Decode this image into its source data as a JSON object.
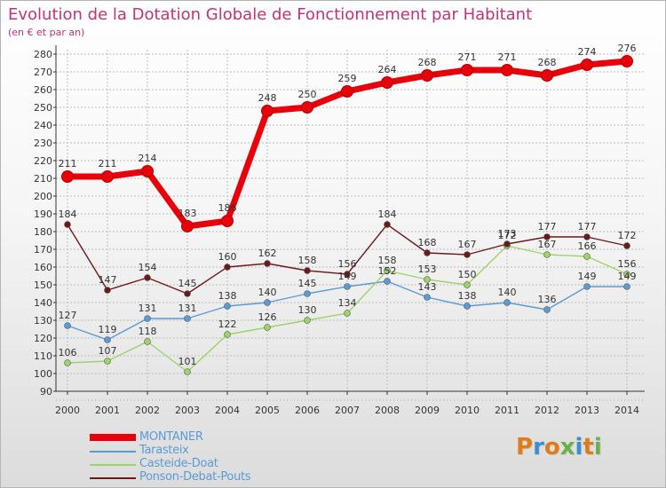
{
  "title": "Evolution de la Dotation Globale de Fonctionnement par Habitant",
  "subtitle": "(en € et par an)",
  "logo_text": "Proxiti",
  "chart_data": {
    "type": "line",
    "title": "Evolution de la Dotation Globale de Fonctionnement par Habitant",
    "ylabel": "(en € et par an)",
    "xlabel": "",
    "x": [
      "2000",
      "2001",
      "2002",
      "2003",
      "2004",
      "2005",
      "2006",
      "2007",
      "2008",
      "2009",
      "2010",
      "2011",
      "2012",
      "2013",
      "2014"
    ],
    "ylim": [
      90,
      280
    ],
    "yticks": [
      90,
      100,
      110,
      120,
      130,
      140,
      150,
      160,
      170,
      180,
      190,
      200,
      210,
      220,
      230,
      240,
      250,
      260,
      270,
      280
    ],
    "grid": true,
    "legend_position": "bottom-left",
    "series": [
      {
        "name": "MONTANER",
        "color": "#e8000b",
        "values": [
          211,
          211,
          214,
          183,
          186,
          248,
          250,
          259,
          264,
          268,
          271,
          271,
          268,
          274,
          276
        ]
      },
      {
        "name": "Tarasteix",
        "color": "#5b9bd5",
        "values": [
          127,
          119,
          131,
          131,
          138,
          140,
          145,
          149,
          152,
          143,
          138,
          140,
          136,
          149,
          149
        ]
      },
      {
        "name": "Casteide-Doat",
        "color": "#9ed36a",
        "values": [
          106,
          107,
          118,
          101,
          122,
          126,
          130,
          134,
          158,
          153,
          150,
          172,
          167,
          166,
          156
        ]
      },
      {
        "name": "Ponson-Debat-Pouts",
        "color": "#6b1a1a",
        "values": [
          184,
          147,
          154,
          145,
          160,
          162,
          158,
          156,
          184,
          168,
          167,
          173,
          177,
          177,
          172
        ]
      }
    ]
  }
}
